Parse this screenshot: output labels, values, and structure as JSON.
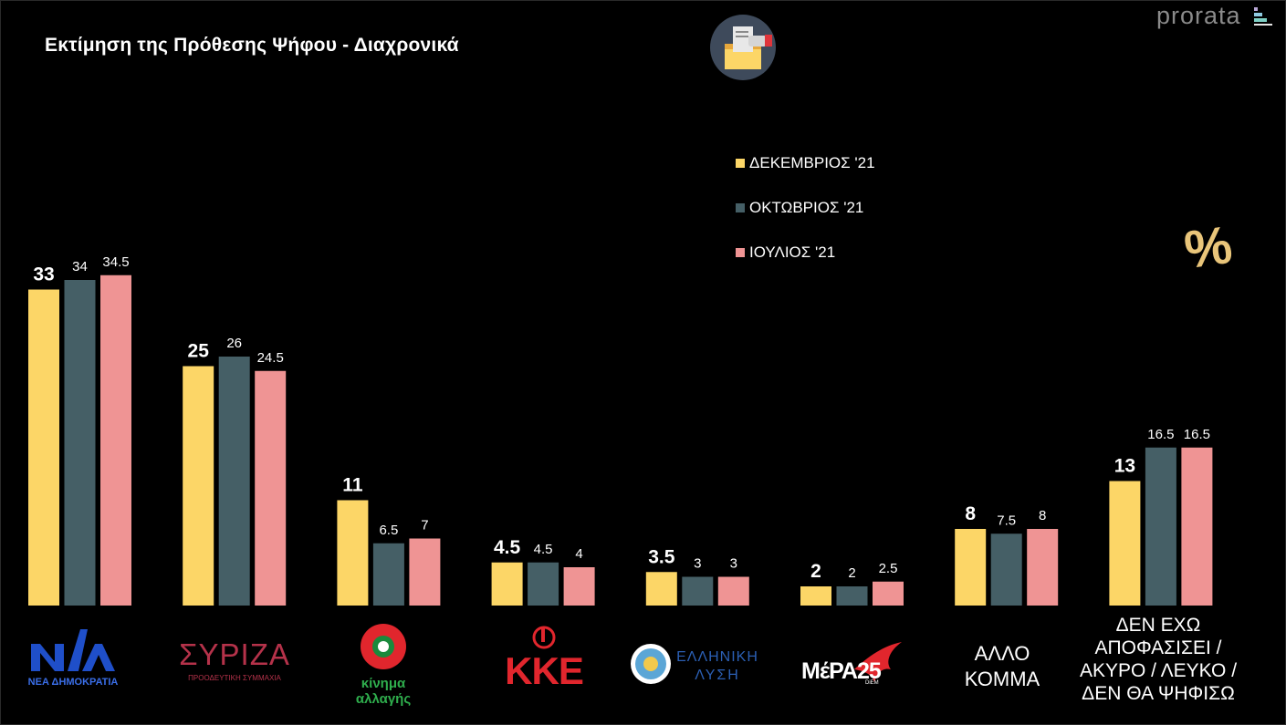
{
  "title": "Εκτίμηση της Πρόθεσης Ψήφου - Διαχρονικά",
  "brand": "prorata",
  "percent_symbol": "%",
  "chart_data": {
    "type": "bar",
    "title": "Εκτίμηση της Πρόθεσης Ψήφου - Διαχρονικά",
    "ylim": [
      0,
      36
    ],
    "grid": false,
    "legend_position": "top-center",
    "categories": [
      "ΝΕΑ ΔΗΜΟΚΡΑΤΙΑ",
      "ΣΥΡΙΖΑ",
      "κίνημα αλλαγής",
      "ΚΚΕ",
      "ΕΛΛΗΝΙΚΗ ΛΥΣΗ",
      "ΜέΡΑ25",
      "ΑΛΛΟ ΚΟΜΜΑ",
      "ΔΕΝ ΕΧΩ ΑΠΟΦΑΣΙΣΕΙ / ΑΚΥΡΟ / ΛΕΥΚΟ / ΔΕΝ ΘΑ ΨΗΦΙΣΩ"
    ],
    "series": [
      {
        "name": "ΔΕΚΕΜΒΡΙΟΣ '21",
        "color": "#fcd667",
        "values": [
          33,
          25,
          11,
          4.5,
          3.5,
          2,
          8,
          13
        ]
      },
      {
        "name": "ΟΚΤΩΒΡΙΟΣ '21",
        "color": "#455f66",
        "values": [
          34,
          26,
          6.5,
          4.5,
          3,
          2,
          7.5,
          16.5
        ]
      },
      {
        "name": "ΙΟΥΛΙΟΣ '21",
        "color": "#ef9494",
        "values": [
          34.5,
          24.5,
          7,
          4,
          3,
          2.5,
          8,
          16.5
        ]
      }
    ],
    "data_labels": [
      [
        "33",
        "25",
        "11",
        "4.5",
        "3.5",
        "2",
        "8",
        "13"
      ],
      [
        "34",
        "26",
        "6.5",
        "4.5",
        "3",
        "2",
        "7.5",
        "16.5"
      ],
      [
        "34.5",
        "24.5",
        "7",
        "4",
        "3",
        "2.5",
        "8",
        "16.5"
      ]
    ]
  },
  "logos": {
    "nd": {
      "mark": "ΝΔ",
      "caption": "ΝΕΑ ΔΗΜΟΚΡΑΤΙΑ"
    },
    "syriza": {
      "mark": "ΣΥΡΙΖΑ",
      "caption": "ΠΡΟΟΔΕΥΤΙΚΗ ΣΥΜΜΑΧΙΑ"
    },
    "kinal": {
      "line1": "κίνημα",
      "line2": "αλλαγής"
    },
    "kke": {
      "mark": "ΚΚΕ"
    },
    "elliniki_lysi": {
      "line1": "ΕΛΛΗΝΙΚΗ",
      "line2": "ΛΥΣΗ"
    },
    "mera25": {
      "mark": "ΜέΡΑ25",
      "sub": "DiEM"
    }
  },
  "other_party_label": {
    "line1": "ΑΛΛΟ",
    "line2": "ΚΟΜΜΑ"
  },
  "undecided_label": {
    "line1": "ΔΕΝ ΕΧΩ",
    "line2": "ΑΠΟΦΑΣΙΣΕΙ /",
    "line3": "ΑΚΥΡΟ / ΛΕΥΚΟ /",
    "line4": "ΔΕΝ ΘΑ ΨΗΦΙΣΩ"
  }
}
